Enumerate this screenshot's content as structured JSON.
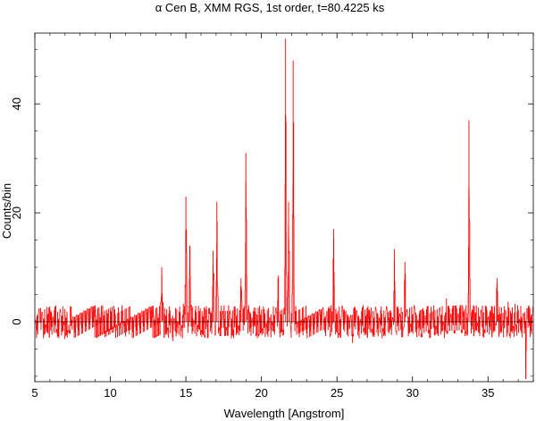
{
  "chart_data": {
    "type": "line",
    "title": "α Cen B, XMM RGS, 1st order, t=80.4225 ks",
    "xlabel": "Wavelength [Angstrom]",
    "ylabel": "Counts/bin",
    "xlim": [
      5,
      38
    ],
    "ylim": [
      -11,
      53
    ],
    "xticks": [
      5,
      10,
      15,
      20,
      25,
      30,
      35
    ],
    "yticks": [
      0,
      20,
      40
    ],
    "series_color": "#ff0000",
    "baseline": 0,
    "noise_amplitude": 3,
    "grid": false,
    "series": [
      {
        "peaks": [
          {
            "x": 13.4,
            "y": 10
          },
          {
            "x": 15.0,
            "y": 23
          },
          {
            "x": 15.25,
            "y": 14
          },
          {
            "x": 16.8,
            "y": 13
          },
          {
            "x": 17.05,
            "y": 22
          },
          {
            "x": 18.65,
            "y": 8
          },
          {
            "x": 18.97,
            "y": 31
          },
          {
            "x": 21.1,
            "y": 8
          },
          {
            "x": 21.6,
            "y": 52
          },
          {
            "x": 21.8,
            "y": 22
          },
          {
            "x": 22.1,
            "y": 48
          },
          {
            "x": 24.78,
            "y": 17
          },
          {
            "x": 28.8,
            "y": 11
          },
          {
            "x": 29.5,
            "y": 11
          },
          {
            "x": 33.74,
            "y": 37
          },
          {
            "x": 35.6,
            "y": 8
          }
        ],
        "dips": [
          {
            "x": 37.5,
            "y": -10.5
          }
        ]
      }
    ]
  }
}
